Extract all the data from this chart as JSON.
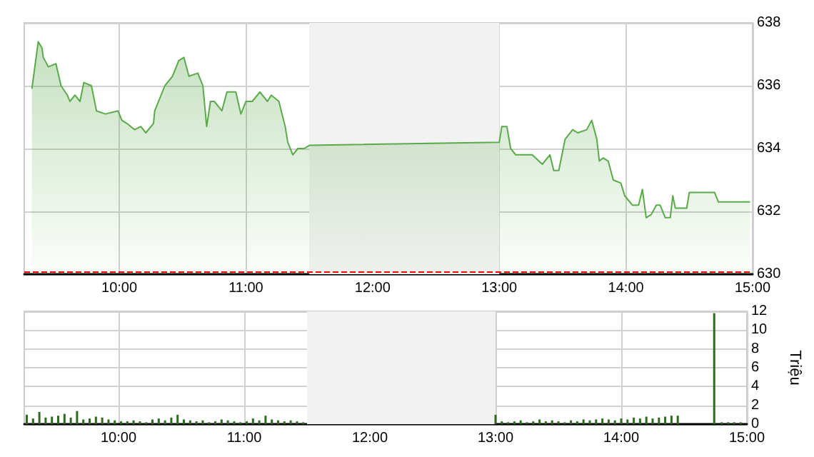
{
  "chart_data": [
    {
      "type": "area",
      "color": "#5aaa4a",
      "x": [
        9.31,
        9.36,
        9.39,
        9.4,
        9.44,
        9.5,
        9.54,
        9.59,
        9.61,
        9.65,
        9.69,
        9.72,
        9.78,
        9.82,
        9.89,
        9.99,
        10.02,
        10.06,
        10.12,
        10.17,
        10.21,
        10.27,
        10.28,
        10.36,
        10.42,
        10.47,
        10.51,
        10.55,
        10.62,
        10.66,
        10.69,
        10.72,
        10.75,
        10.81,
        10.85,
        10.92,
        10.96,
        11.0,
        11.05,
        11.11,
        11.17,
        11.2,
        11.26,
        11.31,
        11.33,
        11.37,
        11.41,
        11.46,
        11.5,
        13.0,
        13.02,
        13.06,
        13.09,
        13.13,
        13.26,
        13.34,
        13.4,
        13.43,
        13.47,
        13.52,
        13.58,
        13.62,
        13.69,
        13.73,
        13.77,
        13.79,
        13.82,
        13.86,
        13.9,
        13.96,
        13.99,
        14.05,
        14.1,
        14.13,
        14.16,
        14.2,
        14.24,
        14.27,
        14.31,
        14.35,
        14.37,
        14.39,
        14.42,
        14.48,
        14.5,
        14.7,
        14.73,
        14.98
      ],
      "values": [
        635.9,
        637.4,
        637.2,
        636.9,
        636.6,
        636.7,
        636.0,
        635.7,
        635.5,
        635.7,
        635.5,
        636.1,
        636.0,
        635.2,
        635.1,
        635.2,
        634.9,
        634.8,
        634.6,
        634.7,
        634.5,
        634.8,
        635.2,
        636.0,
        636.3,
        636.8,
        636.9,
        636.3,
        636.4,
        636.0,
        634.7,
        635.5,
        635.5,
        635.2,
        635.8,
        635.8,
        635.1,
        635.5,
        635.5,
        635.8,
        635.5,
        635.7,
        635.5,
        634.7,
        634.2,
        633.8,
        634.0,
        634.0,
        634.1,
        634.2,
        634.7,
        634.7,
        634.0,
        633.8,
        633.8,
        633.5,
        633.8,
        633.3,
        633.3,
        634.3,
        634.6,
        634.5,
        634.6,
        634.9,
        634.3,
        633.6,
        633.7,
        633.6,
        633.0,
        632.9,
        632.5,
        632.2,
        632.2,
        632.7,
        631.8,
        631.9,
        632.2,
        632.2,
        631.8,
        631.8,
        632.5,
        632.1,
        632.1,
        632.1,
        632.6,
        632.6,
        632.3,
        632.3
      ],
      "xlim": [
        9.25,
        15
      ],
      "xticks": [
        {
          "value": 10,
          "label": "10:00"
        },
        {
          "value": 11,
          "label": "11:00"
        },
        {
          "value": 12,
          "label": "12:00"
        },
        {
          "value": 13,
          "label": "13:00"
        },
        {
          "value": 14,
          "label": "14:00"
        },
        {
          "value": 15,
          "label": "15:00"
        }
      ],
      "ylim": [
        630,
        638
      ],
      "yticks": [
        630,
        632,
        634,
        636,
        638
      ],
      "grid": true,
      "bands": [
        {
          "axis": "x",
          "from": 11.5,
          "to": 13,
          "color": "#f2f2f2"
        }
      ],
      "ref_lines": [
        {
          "axis": "y",
          "value": 630.1,
          "color": "#ff0000",
          "line_style": "dashed"
        }
      ]
    },
    {
      "type": "bar",
      "color": "#2e6b1e",
      "ylabel": "Triệu",
      "x": [
        9.27,
        9.32,
        9.37,
        9.42,
        9.47,
        9.52,
        9.57,
        9.62,
        9.67,
        9.72,
        9.77,
        9.82,
        9.87,
        9.92,
        9.97,
        10.02,
        10.07,
        10.12,
        10.17,
        10.22,
        10.27,
        10.32,
        10.37,
        10.42,
        10.47,
        10.52,
        10.57,
        10.62,
        10.67,
        10.72,
        10.77,
        10.82,
        10.87,
        10.92,
        10.97,
        11.02,
        11.07,
        11.12,
        11.17,
        11.22,
        11.27,
        11.32,
        11.37,
        11.42,
        11.47,
        13.0,
        13.05,
        13.1,
        13.15,
        13.2,
        13.25,
        13.3,
        13.35,
        13.4,
        13.45,
        13.5,
        13.55,
        13.6,
        13.65,
        13.7,
        13.75,
        13.8,
        13.85,
        13.9,
        13.95,
        14.0,
        14.05,
        14.1,
        14.15,
        14.2,
        14.25,
        14.3,
        14.35,
        14.4,
        14.45,
        14.74,
        14.8,
        14.85,
        14.9,
        14.95
      ],
      "values": [
        1.0,
        0.6,
        1.3,
        0.7,
        0.8,
        0.9,
        1.1,
        0.7,
        1.4,
        0.5,
        0.6,
        0.8,
        0.7,
        0.5,
        0.4,
        0.3,
        0.3,
        0.4,
        0.3,
        0.2,
        0.5,
        0.6,
        0.4,
        0.7,
        1.0,
        0.5,
        0.4,
        0.3,
        0.4,
        0.2,
        0.3,
        0.5,
        0.4,
        0.3,
        0.2,
        0.3,
        0.6,
        0.4,
        0.9,
        0.5,
        0.4,
        0.3,
        0.4,
        0.3,
        0.2,
        1.0,
        0.3,
        0.2,
        0.3,
        0.4,
        0.2,
        0.3,
        0.5,
        0.3,
        0.4,
        0.3,
        0.2,
        0.4,
        0.3,
        0.5,
        0.4,
        0.5,
        0.6,
        0.5,
        0.4,
        0.6,
        0.5,
        0.7,
        0.6,
        0.8,
        0.6,
        0.7,
        0.8,
        0.9,
        0.9,
        11.8,
        0.2,
        0.2,
        0.2,
        0.2
      ],
      "xlim": [
        9.25,
        15
      ],
      "xticks": [
        {
          "value": 10,
          "label": "10:00"
        },
        {
          "value": 11,
          "label": "11:00"
        },
        {
          "value": 12,
          "label": "12:00"
        },
        {
          "value": 13,
          "label": "13:00"
        },
        {
          "value": 14,
          "label": "14:00"
        },
        {
          "value": 15,
          "label": "15:00"
        }
      ],
      "ylim": [
        0,
        12
      ],
      "yticks": [
        0,
        2,
        4,
        6,
        8,
        10,
        12
      ],
      "grid": true,
      "bands": [
        {
          "axis": "x",
          "from": 11.5,
          "to": 13,
          "color": "#f2f2f2"
        }
      ]
    }
  ]
}
